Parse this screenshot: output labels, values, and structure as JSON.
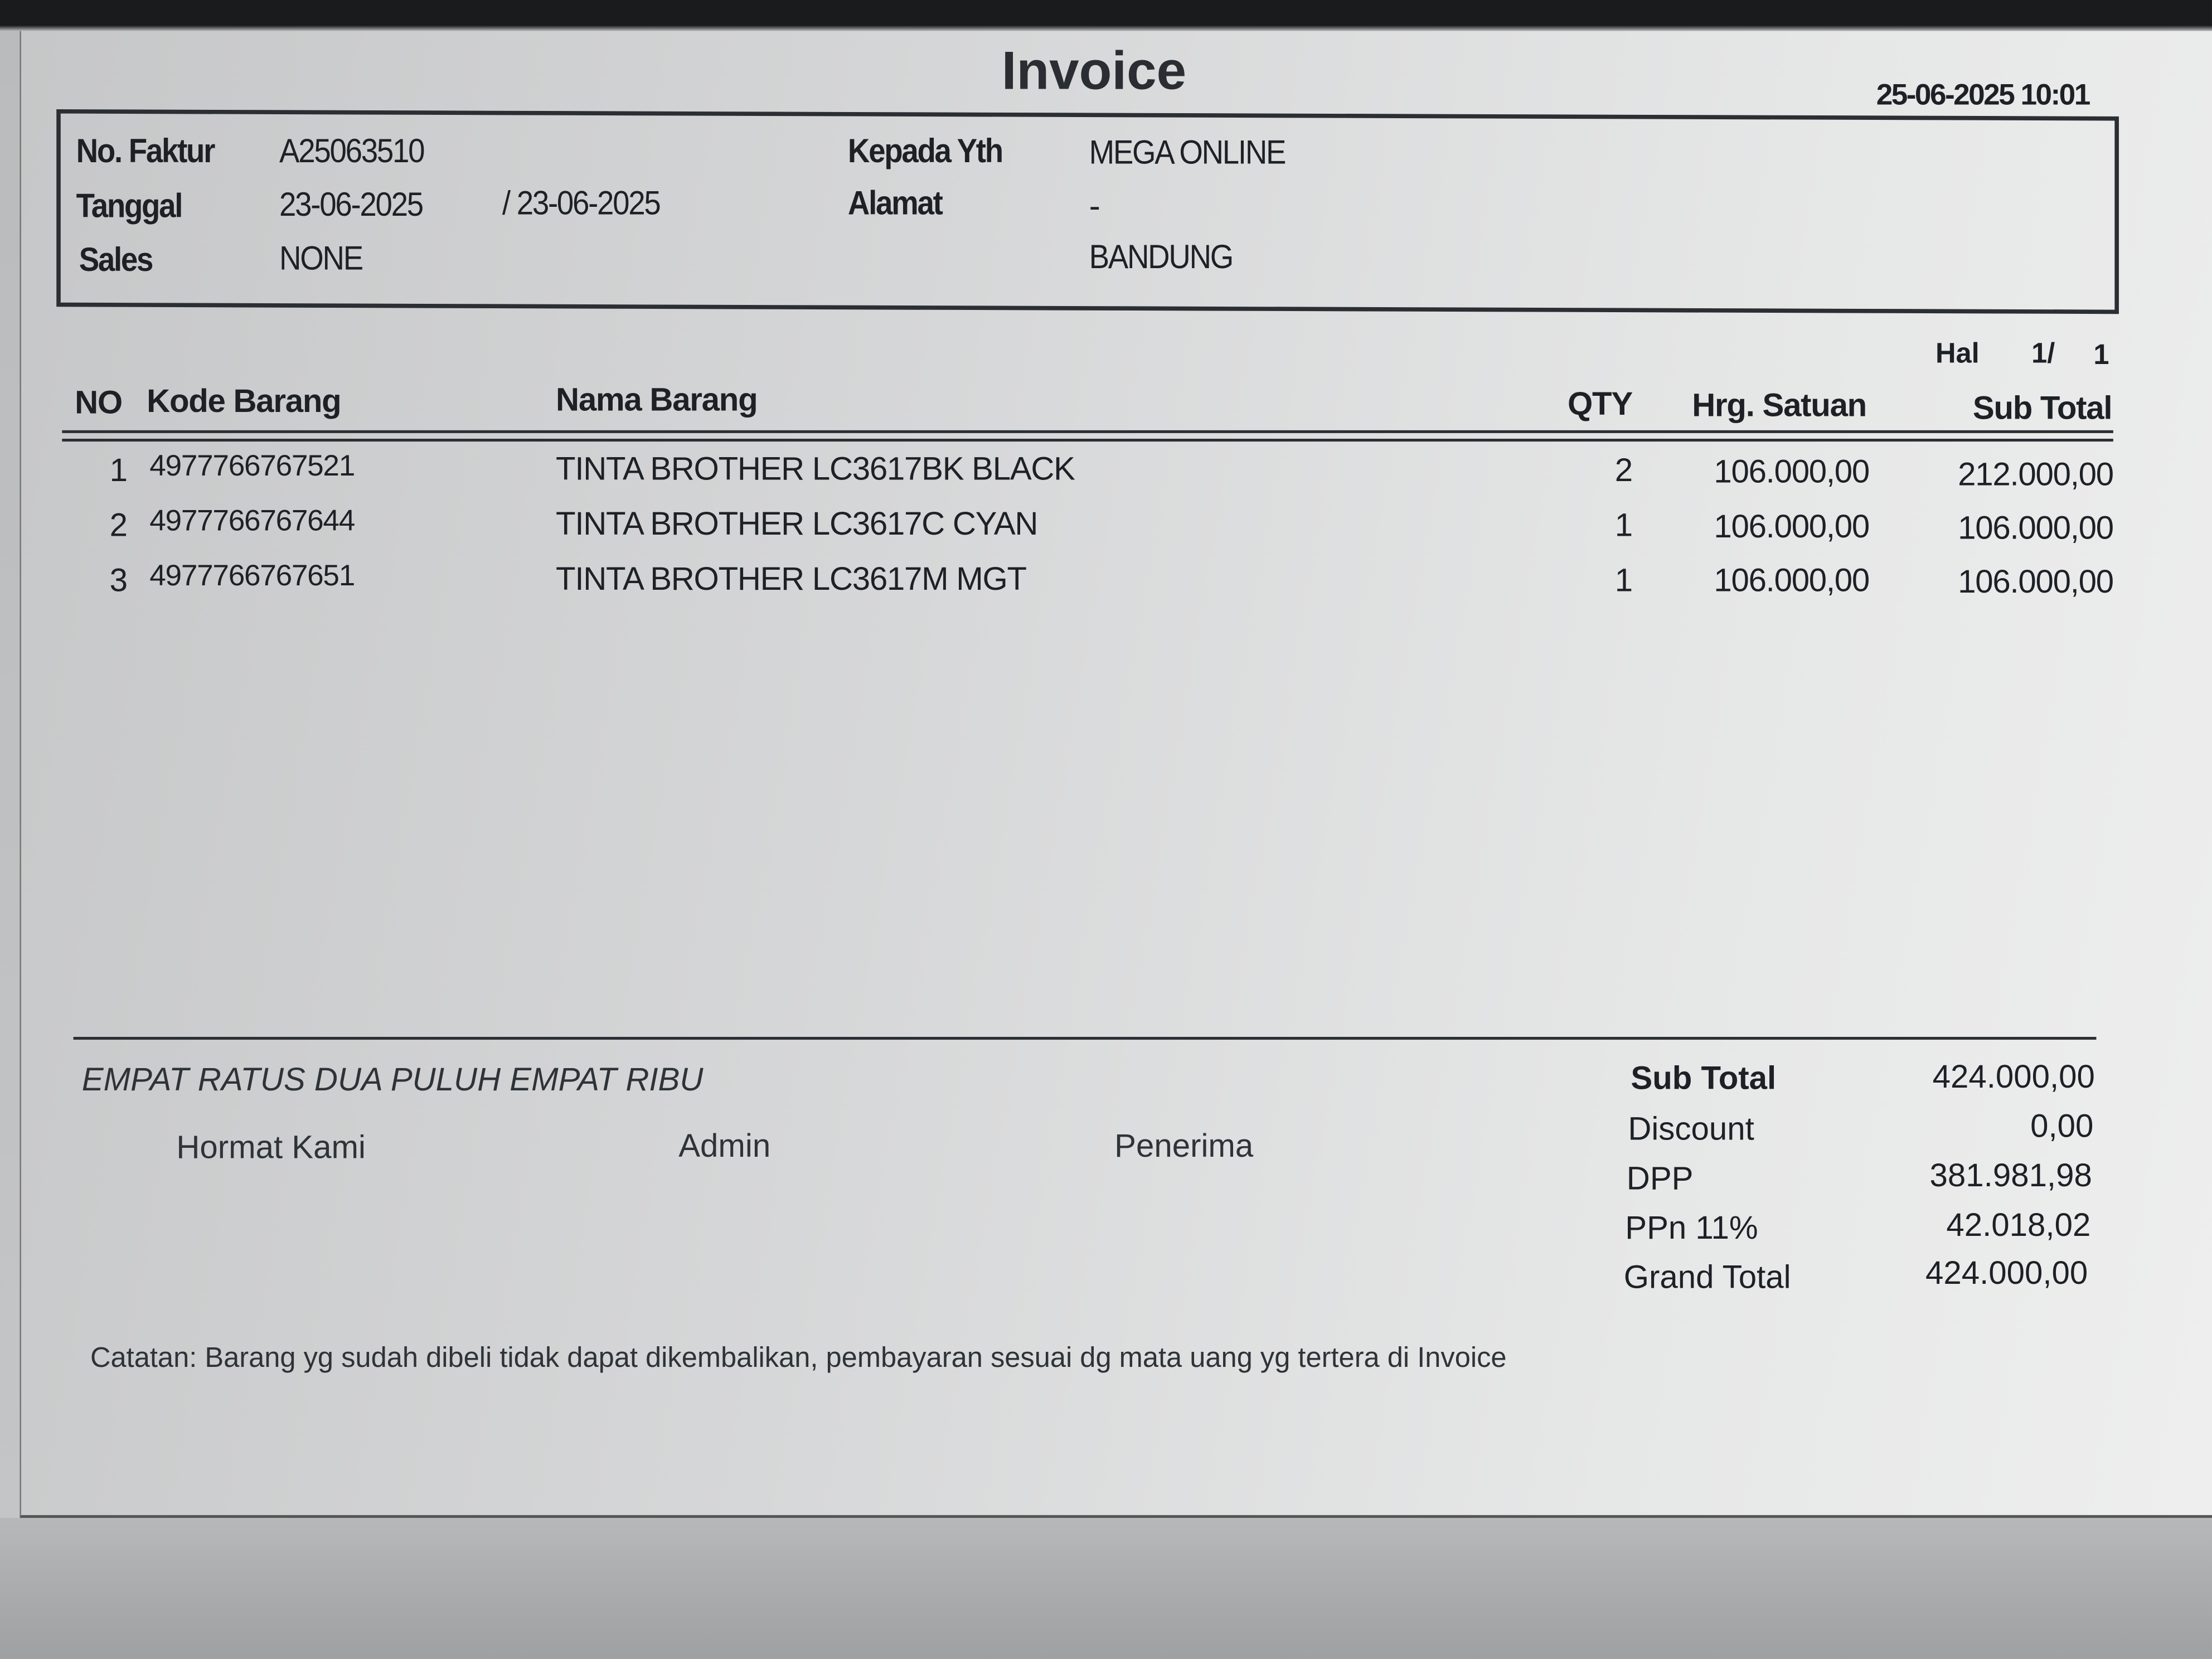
{
  "title": "Invoice",
  "printed_at": "25-06-2025 10:01",
  "header": {
    "no_faktur_label": "No. Faktur",
    "no_faktur": "A25063510",
    "tanggal_label": "Tanggal",
    "tanggal": "23-06-2025",
    "tanggal2": "/ 23-06-2025",
    "sales_label": "Sales",
    "sales": "NONE",
    "kepada_label": "Kepada Yth",
    "kepada": "MEGA ONLINE",
    "alamat_label": "Alamat",
    "alamat": "-",
    "kota": "BANDUNG"
  },
  "page": {
    "label": "Hal",
    "current": "1/",
    "total": "1"
  },
  "table": {
    "columns": [
      "NO",
      "Kode Barang",
      "Nama Barang",
      "QTY",
      "Hrg. Satuan",
      "Sub Total"
    ],
    "rows": [
      {
        "no": "1",
        "kode": "4977766767521",
        "nama": "TINTA BROTHER LC3617BK BLACK",
        "qty": "2",
        "harga": "106.000,00",
        "subtotal": "212.000,00"
      },
      {
        "no": "2",
        "kode": "4977766767644",
        "nama": "TINTA BROTHER LC3617C CYAN",
        "qty": "1",
        "harga": "106.000,00",
        "subtotal": "106.000,00"
      },
      {
        "no": "3",
        "kode": "4977766767651",
        "nama": "TINTA BROTHER LC3617M MGT",
        "qty": "1",
        "harga": "106.000,00",
        "subtotal": "106.000,00"
      }
    ]
  },
  "footer": {
    "terbilang": "EMPAT RATUS DUA PULUH EMPAT RIBU",
    "signatures": [
      "Hormat Kami",
      "Admin",
      "Penerima"
    ],
    "totals": [
      {
        "label": "Sub Total",
        "value": "424.000,00"
      },
      {
        "label": "Discount",
        "value": "0,00"
      },
      {
        "label": "DPP",
        "value": "381.981,98"
      },
      {
        "label": "PPn 11%",
        "value": "42.018,02"
      },
      {
        "label": "Grand Total",
        "value": "424.000,00"
      }
    ],
    "note": "Catatan: Barang yg sudah dibeli tidak dapat dikembalikan, pembayaran sesuai dg mata uang yg tertera di Invoice"
  }
}
